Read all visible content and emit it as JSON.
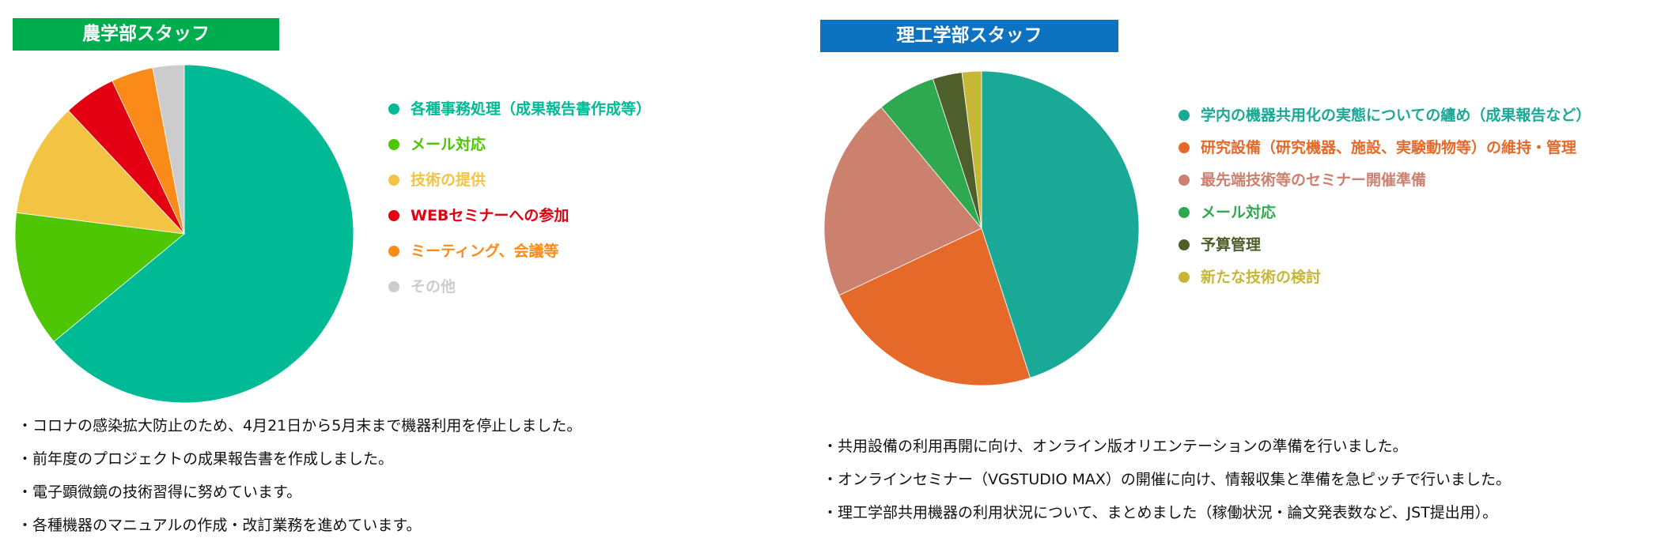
{
  "colors": {
    "left_title_bg": "#00ad4e",
    "right_title_bg": "#0d72c0"
  },
  "left_panel": {
    "title": "農学部スタッフ",
    "notes": [
      "・コロナの感染拡大防止のため、4月21日から5月末まで機器利用を停止しました。",
      "・前年度のプロジェクトの成果報告書を作成しました。",
      "・電子顕微鏡の技術習得に努めています。",
      "・各種機器のマニュアルの作成・改訂業務を進めています。"
    ]
  },
  "right_panel": {
    "title": "理工学部スタッフ",
    "notes": [
      "・共用設備の利用再開に向け、オンライン版オリエンテーションの準備を行いました。",
      "・オンラインセミナー（VGSTUDIO MAX）の開催に向け、情報収集と準備を急ピッチで行いました。",
      "・理工学部共用機器の利用状況について、まとめました（稼働状況・論文発表数など、JST提出用）。"
    ]
  },
  "chart_data": [
    {
      "type": "pie",
      "title": "農学部スタッフ",
      "legend_position": "right",
      "series": [
        {
          "label": "各種事務処理（成果報告書作成等）",
          "value": 64,
          "color": "#00ba96",
          "text_color": "#00ba96"
        },
        {
          "label": "メール対応",
          "value": 13,
          "color": "#4ec604",
          "text_color": "#4ec604"
        },
        {
          "label": "技術の提供",
          "value": 11,
          "color": "#f3c443",
          "text_color": "#f3c443"
        },
        {
          "label": "WEBセミナーへの参加",
          "value": 5,
          "color": "#e20012",
          "text_color": "#e20012"
        },
        {
          "label": "ミーティング、会議等",
          "value": 4,
          "color": "#fa8b19",
          "text_color": "#fa8b19"
        },
        {
          "label": "その他",
          "value": 3,
          "color": "#cccccc",
          "text_color": "#cccccc"
        }
      ]
    },
    {
      "type": "pie",
      "title": "理工学部スタッフ",
      "legend_position": "right",
      "series": [
        {
          "label": "学内の機器共用化の実態についての纏め（成果報告など）",
          "value": 45,
          "color": "#1aa897",
          "text_color": "#1aa897"
        },
        {
          "label": "研究設備（研究機器、施設、実験動物等）の維持・管理",
          "value": 23,
          "color": "#e56a2a",
          "text_color": "#e56a2a"
        },
        {
          "label": "最先端技術等のセミナー開催準備",
          "value": 21,
          "color": "#cc806e",
          "text_color": "#cc806e"
        },
        {
          "label": "メール対応",
          "value": 6,
          "color": "#2ea950",
          "text_color": "#2ea950"
        },
        {
          "label": "予算管理",
          "value": 3,
          "color": "#4e5f2b",
          "text_color": "#4e5f2b"
        },
        {
          "label": "新たな技術の検討",
          "value": 2,
          "color": "#c6b736",
          "text_color": "#c6b736"
        }
      ]
    }
  ]
}
